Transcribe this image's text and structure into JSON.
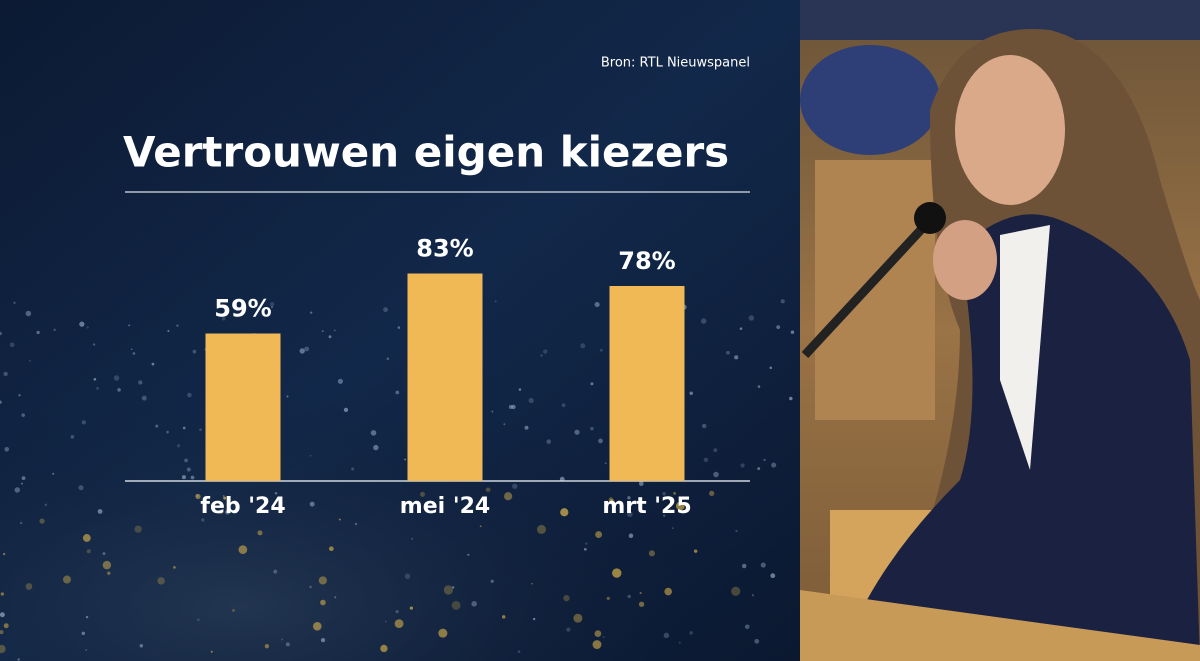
{
  "chart_data": {
    "type": "bar",
    "title": "Vertrouwen eigen kiezers",
    "source": "Bron: RTL Nieuwspanel",
    "categories": [
      "feb '24",
      "mei '24",
      "mrt '25"
    ],
    "values": [
      59,
      83,
      78
    ],
    "value_labels": [
      "59%",
      "83%",
      "78%"
    ],
    "color": "#f0b955"
  }
}
